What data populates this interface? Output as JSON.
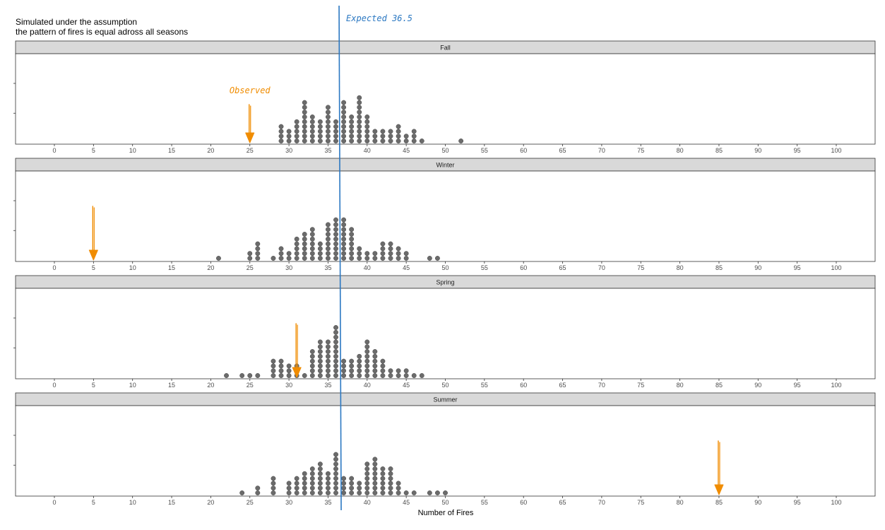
{
  "chart_data": {
    "type": "dotplot",
    "title_lines": [
      "Simulated under the assumption",
      "the pattern of fires is equal adross all seasons"
    ],
    "xlabel": "Number of Fires",
    "xlim": [
      0,
      100
    ],
    "x_ticks": [
      0,
      5,
      10,
      15,
      20,
      25,
      30,
      35,
      40,
      45,
      50,
      55,
      60,
      65,
      70,
      75,
      80,
      85,
      90,
      95,
      100
    ],
    "expected": {
      "label": "Expected 36.5",
      "value": 36.5
    },
    "observed_label": "Observed",
    "colors": {
      "dots": "#6b6b6b",
      "expected_line": "#2b78c2",
      "observed_arrow": "#f08c00",
      "strip": "#d9d9d9"
    },
    "panels": [
      {
        "name": "Fall",
        "observed": 25,
        "counts": {
          "29": 4,
          "30": 3,
          "31": 5,
          "32": 9,
          "33": 6,
          "34": 5,
          "35": 8,
          "36": 5,
          "37": 9,
          "38": 6,
          "39": 10,
          "40": 6,
          "41": 3,
          "42": 3,
          "43": 3,
          "44": 4,
          "45": 2,
          "46": 3,
          "47": 1,
          "52": 1
        }
      },
      {
        "name": "Winter",
        "observed": 5,
        "counts": {
          "21": 1,
          "25": 2,
          "26": 4,
          "28": 1,
          "29": 3,
          "30": 2,
          "31": 5,
          "32": 6,
          "33": 7,
          "34": 4,
          "35": 8,
          "36": 9,
          "37": 9,
          "38": 7,
          "39": 3,
          "40": 2,
          "41": 2,
          "42": 4,
          "43": 4,
          "44": 3,
          "45": 2,
          "48": 1,
          "49": 1
        }
      },
      {
        "name": "Spring",
        "observed": 31,
        "counts": {
          "22": 1,
          "24": 1,
          "25": 1,
          "26": 1,
          "28": 4,
          "29": 4,
          "30": 3,
          "31": 3,
          "32": 1,
          "33": 6,
          "34": 8,
          "35": 8,
          "36": 11,
          "37": 4,
          "38": 4,
          "39": 5,
          "40": 8,
          "41": 6,
          "42": 4,
          "43": 2,
          "44": 2,
          "45": 2,
          "46": 1,
          "47": 1
        }
      },
      {
        "name": "Summer",
        "observed": 85,
        "counts": {
          "24": 1,
          "26": 2,
          "28": 4,
          "30": 3,
          "31": 4,
          "32": 5,
          "33": 6,
          "34": 7,
          "35": 5,
          "36": 9,
          "37": 4,
          "38": 4,
          "39": 3,
          "40": 7,
          "41": 8,
          "42": 6,
          "43": 6,
          "44": 3,
          "45": 1,
          "46": 1,
          "48": 1,
          "49": 1,
          "50": 1
        }
      }
    ]
  }
}
